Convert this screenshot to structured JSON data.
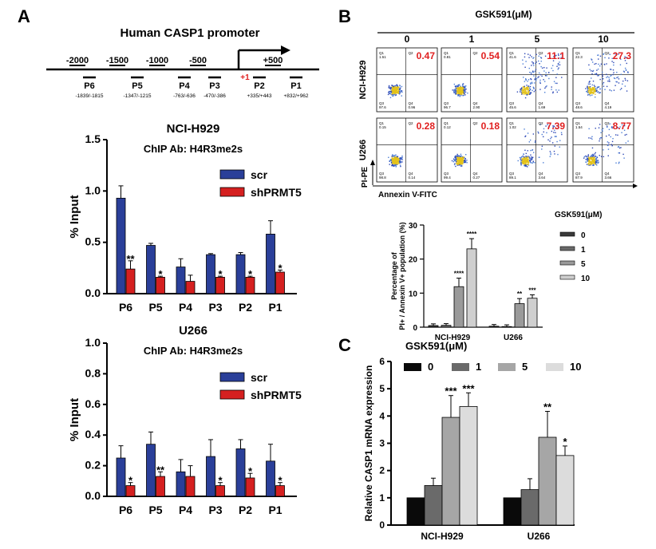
{
  "panel_labels": {
    "a": "A",
    "b": "B",
    "c": "C"
  },
  "colors": {
    "scr": "#2a3f99",
    "shprmt5": "#d52020",
    "flow_value": "#e02020",
    "gray_0": "#3a3a3a",
    "gray_1": "#6a6a6a",
    "gray_5": "#9a9a9a",
    "gray_10": "#cfcfcf",
    "c_0": "#0a0a0a",
    "c_1": "#6a6a6a",
    "c_5": "#a6a6a6",
    "c_10": "#dcdcdc"
  },
  "promoter": {
    "title": "Human CASP1 promoter",
    "ticks": [
      "-2000",
      "-1500",
      "-1000",
      "-500",
      "+500"
    ],
    "tss_label": "+1",
    "regions": [
      {
        "name": "P6",
        "range": "-1839/-1815"
      },
      {
        "name": "P5",
        "range": "-1347/-1215"
      },
      {
        "name": "P4",
        "range": "-763/-636"
      },
      {
        "name": "P3",
        "range": "-470/-386"
      },
      {
        "name": "P2",
        "range": "+335/+443"
      },
      {
        "name": "P1",
        "range": "+832/+962"
      }
    ]
  },
  "chart_data": [
    {
      "type": "bar",
      "title": "NCI-H929",
      "subtitle": "ChIP Ab: H4R3me2s",
      "ylabel": "% Input",
      "categories": [
        "P6",
        "P5",
        "P4",
        "P3",
        "P2",
        "P1"
      ],
      "ylim": [
        0,
        1.5
      ],
      "yticks": [
        "0.0",
        "0.5",
        "1.0",
        "1.5"
      ],
      "series": [
        {
          "name": "scr",
          "values": [
            0.93,
            0.47,
            0.26,
            0.38,
            0.38,
            0.58
          ],
          "errors": [
            0.12,
            0.02,
            0.08,
            0.01,
            0.02,
            0.13
          ]
        },
        {
          "name": "shPRMT5",
          "values": [
            0.24,
            0.16,
            0.12,
            0.16,
            0.16,
            0.21
          ],
          "errors": [
            0.08,
            0.01,
            0.06,
            0.01,
            0.01,
            0.02
          ]
        }
      ],
      "significance": [
        "**",
        "*",
        "",
        "*",
        "*",
        "*"
      ]
    },
    {
      "type": "bar",
      "title": "U266",
      "subtitle": "ChIP Ab: H4R3me2s",
      "ylabel": "% Input",
      "categories": [
        "P6",
        "P5",
        "P4",
        "P3",
        "P2",
        "P1"
      ],
      "ylim": [
        0,
        1.0
      ],
      "yticks": [
        "0.0",
        "0.2",
        "0.4",
        "0.6",
        "0.8",
        "1.0"
      ],
      "series": [
        {
          "name": "scr",
          "values": [
            0.25,
            0.34,
            0.16,
            0.26,
            0.31,
            0.23
          ],
          "errors": [
            0.08,
            0.08,
            0.08,
            0.11,
            0.06,
            0.11
          ]
        },
        {
          "name": "shPRMT5",
          "values": [
            0.07,
            0.13,
            0.13,
            0.07,
            0.12,
            0.07
          ],
          "errors": [
            0.02,
            0.03,
            0.07,
            0.02,
            0.03,
            0.02
          ]
        }
      ],
      "significance": [
        "*",
        "**",
        "",
        "*",
        "*",
        "*"
      ]
    },
    {
      "type": "bar",
      "title": "",
      "legend_title": "GSK591(μM)",
      "ylabel": "Percentage of PI+ / Annexin V+ population (%)",
      "categories": [
        "NCI-H929",
        "U266"
      ],
      "ylim": [
        0,
        30
      ],
      "yticks": [
        "0",
        "10",
        "20",
        "30"
      ],
      "series": [
        {
          "name": "0",
          "values": [
            0.47,
            0.28
          ],
          "errors": [
            0.5,
            0.5
          ]
        },
        {
          "name": "1",
          "values": [
            0.54,
            0.18
          ],
          "errors": [
            0.5,
            0.5
          ]
        },
        {
          "name": "5",
          "values": [
            11.9,
            6.9
          ],
          "errors": [
            2.5,
            1.5
          ]
        },
        {
          "name": "10",
          "values": [
            23.0,
            8.5
          ],
          "errors": [
            3.0,
            1.0
          ]
        }
      ],
      "significance": [
        [
          "",
          "",
          "****",
          "****"
        ],
        [
          "",
          "",
          "**",
          "***"
        ]
      ]
    },
    {
      "type": "bar",
      "title": "",
      "legend_title": "GSK591(μM)",
      "ylabel": "Relative CASP1 mRNA expression",
      "categories": [
        "NCI-H929",
        "U266"
      ],
      "ylim": [
        0,
        6
      ],
      "yticks": [
        "0",
        "1",
        "2",
        "3",
        "4",
        "5",
        "6"
      ],
      "series": [
        {
          "name": "0",
          "values": [
            1.0,
            1.0
          ],
          "errors": [
            0,
            0
          ]
        },
        {
          "name": "1",
          "values": [
            1.45,
            1.3
          ],
          "errors": [
            0.27,
            0.4
          ]
        },
        {
          "name": "5",
          "values": [
            3.95,
            3.22
          ],
          "errors": [
            0.8,
            0.95
          ]
        },
        {
          "name": "10",
          "values": [
            4.35,
            2.55
          ],
          "errors": [
            0.5,
            0.35
          ]
        }
      ],
      "significance": [
        [
          "",
          "",
          "***",
          "***"
        ],
        [
          "",
          "",
          "**",
          "*"
        ]
      ]
    }
  ],
  "flow": {
    "top_label": "GSK591(μM)",
    "concentrations": [
      "0",
      "1",
      "5",
      "10"
    ],
    "rows": [
      {
        "cell_line": "NCI-H929",
        "values": [
          "0.47",
          "0.54",
          "11.1",
          "27.3"
        ],
        "q1": [
          "1.51",
          "0.81",
          "41.6",
          "22.3"
        ],
        "q3": [
          "97.6",
          "96.7",
          "45.6",
          "48.6"
        ],
        "q4": [
          "0.96",
          "2.90",
          "1.69",
          "4.19"
        ]
      },
      {
        "cell_line": "U266",
        "values": [
          "0.28",
          "0.18",
          "7.39",
          "8.77"
        ],
        "q1": [
          "0.15",
          "0.12",
          "1.02",
          "1.54"
        ],
        "q3": [
          "98.8",
          "99.4",
          "89.1",
          "87.9"
        ],
        "q4": [
          "0.14",
          "0.27",
          "3.64",
          "3.66"
        ]
      }
    ],
    "x_axis_label": "Annexin V-FITC",
    "y_axis_label": "PI-PE"
  }
}
